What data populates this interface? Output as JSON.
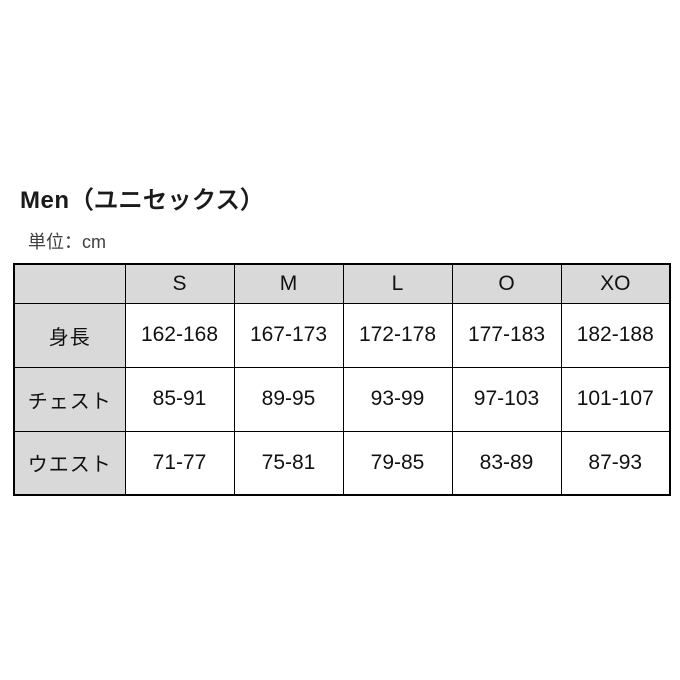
{
  "page": {
    "title": "Men（ユニセックス）",
    "unit_label": "単位：cm"
  },
  "table": {
    "columns": [
      "",
      "S",
      "M",
      "L",
      "O",
      "XO"
    ],
    "rows": [
      {
        "label": "身長",
        "values": [
          "162-168",
          "167-173",
          "172-178",
          "177-183",
          "182-188"
        ]
      },
      {
        "label": "チェスト",
        "values": [
          "85-91",
          "89-95",
          "93-99",
          "97-103",
          "101-107"
        ]
      },
      {
        "label": "ウエスト",
        "values": [
          "71-77",
          "75-81",
          "79-85",
          "83-89",
          "87-93"
        ]
      }
    ]
  },
  "colors": {
    "header_background": "#d9d9d9",
    "border": "#000000",
    "subtitle_text": "#404040"
  }
}
